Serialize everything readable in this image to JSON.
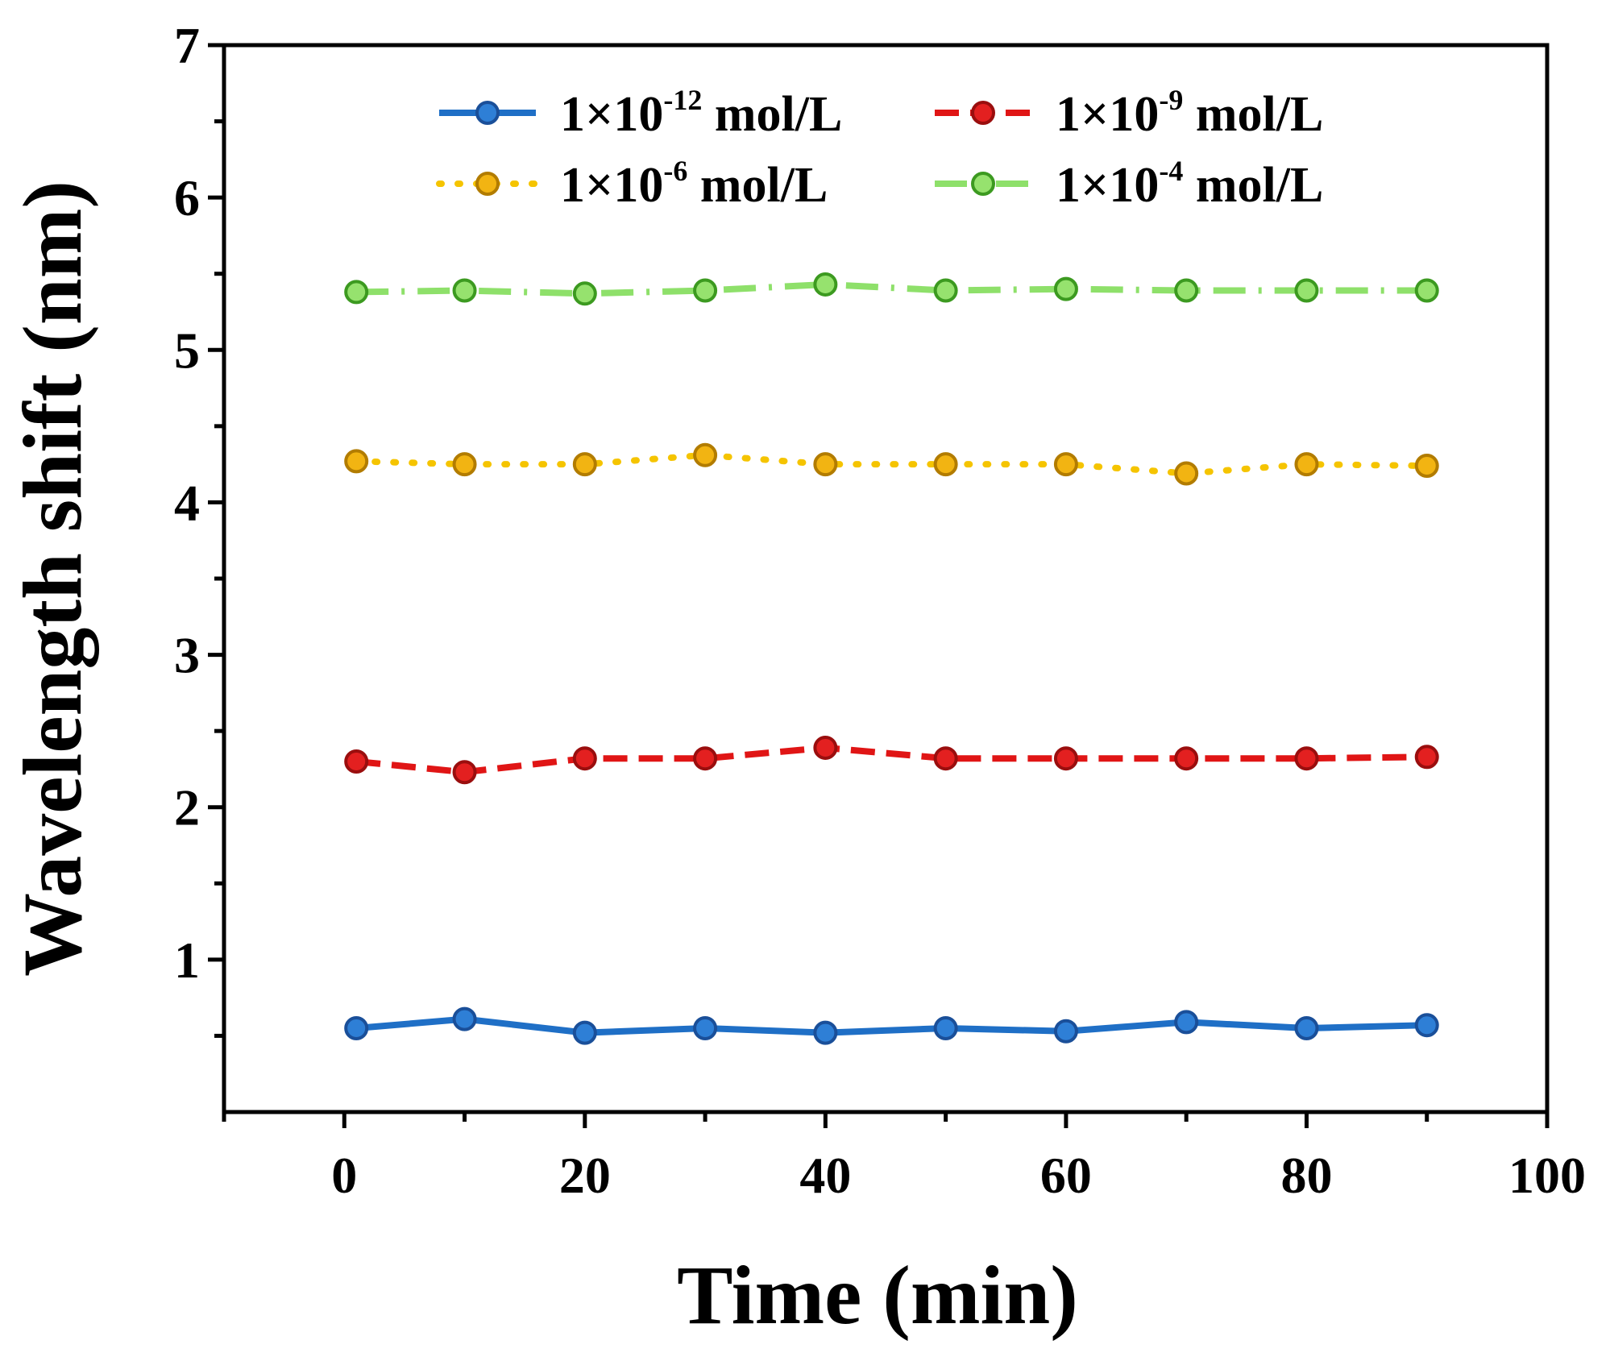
{
  "chart_data": {
    "type": "line",
    "title": "",
    "xlabel": "Time (min)",
    "ylabel": "Wavelength shift (nm)",
    "xlim": [
      -10,
      100
    ],
    "ylim": [
      0,
      7
    ],
    "x_ticks": [
      0,
      20,
      40,
      60,
      80,
      100
    ],
    "y_ticks": [
      1,
      2,
      3,
      4,
      5,
      6,
      7
    ],
    "grid": false,
    "legend_position": "top",
    "x": [
      1,
      10,
      20,
      30,
      40,
      50,
      60,
      70,
      80,
      90
    ],
    "series": [
      {
        "name": "1×10-12 mol/L",
        "label_base": "1×10",
        "label_exp": "-12",
        "label_unit": " mol/L",
        "color": "#1f6fc6",
        "marker_fill": "#2e7fd6",
        "marker_stroke": "#1a4f99",
        "line_style": "solid",
        "values": [
          0.55,
          0.61,
          0.52,
          0.55,
          0.52,
          0.55,
          0.53,
          0.59,
          0.55,
          0.57
        ]
      },
      {
        "name": "1×10-9 mol/L",
        "label_base": "1×10",
        "label_exp": "-9",
        "label_unit": " mol/L",
        "color": "#e01515",
        "marker_fill": "#e32020",
        "marker_stroke": "#9a0e0e",
        "line_style": "dash",
        "values": [
          2.3,
          2.23,
          2.32,
          2.32,
          2.39,
          2.32,
          2.32,
          2.32,
          2.32,
          2.33
        ]
      },
      {
        "name": "1×10-6 mol/L",
        "label_base": "1×10",
        "label_exp": "-6",
        "label_unit": " mol/L",
        "color": "#f5c400",
        "marker_fill": "#f2b412",
        "marker_stroke": "#b27c00",
        "line_style": "dot",
        "values": [
          4.27,
          4.25,
          4.25,
          4.31,
          4.25,
          4.25,
          4.25,
          4.19,
          4.25,
          4.24
        ]
      },
      {
        "name": "1×10-4 mol/L",
        "label_base": "1×10",
        "label_exp": "-4",
        "label_unit": " mol/L",
        "color": "#8ee06a",
        "marker_fill": "#96e26e",
        "marker_stroke": "#3c9a20",
        "line_style": "dashdot",
        "values": [
          5.38,
          5.39,
          5.37,
          5.39,
          5.43,
          5.39,
          5.4,
          5.39,
          5.39,
          5.39
        ]
      }
    ]
  }
}
